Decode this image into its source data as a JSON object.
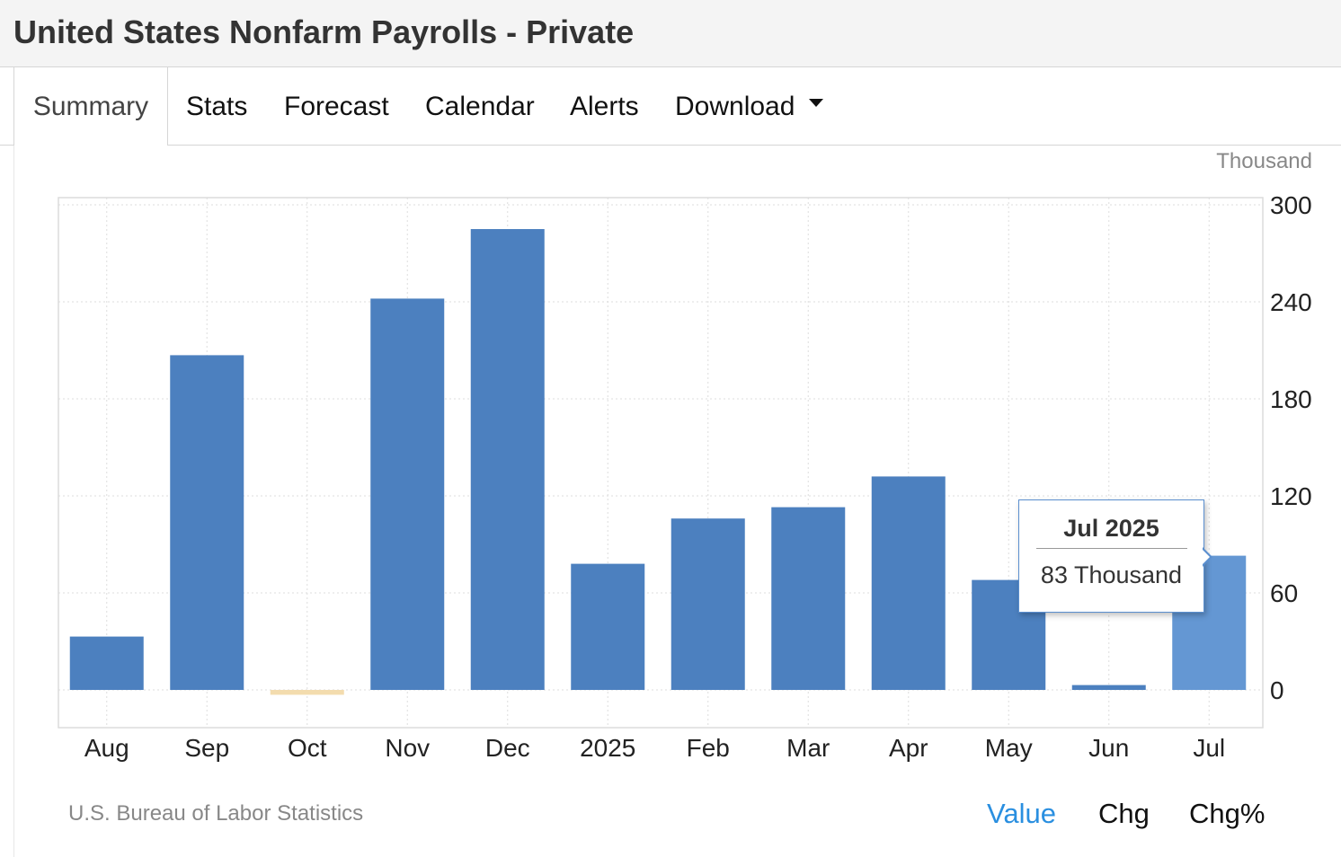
{
  "header": {
    "title": "United States Nonfarm Payrolls - Private"
  },
  "tabs": [
    {
      "label": "Summary",
      "active": true
    },
    {
      "label": "Stats"
    },
    {
      "label": "Forecast"
    },
    {
      "label": "Calendar"
    },
    {
      "label": "Alerts"
    },
    {
      "label": "Download",
      "icon": "caret-down-icon"
    }
  ],
  "chart_data": {
    "type": "bar",
    "unit": "Thousand",
    "categories": [
      "Aug",
      "Sep",
      "Oct",
      "Nov",
      "Dec",
      "2025",
      "Feb",
      "Mar",
      "Apr",
      "May",
      "Jun",
      "Jul"
    ],
    "values": [
      33,
      207,
      -3,
      242,
      285,
      78,
      106,
      113,
      132,
      68,
      3,
      83
    ],
    "ylim": [
      0,
      300
    ],
    "yticks": [
      300,
      240,
      180,
      120,
      60,
      0
    ],
    "y_axis_side": "right",
    "grid": true,
    "highlighted_index": 11,
    "colors": {
      "positive": "#4c80bf",
      "negative": "#f3dcae",
      "highlight": "#6497d3"
    },
    "tooltip": {
      "title": "Jul 2025",
      "value": "83 Thousand"
    }
  },
  "footer": {
    "source": "U.S. Bureau of Labor Statistics",
    "modes": [
      {
        "label": "Value",
        "active": true
      },
      {
        "label": "Chg"
      },
      {
        "label": "Chg%"
      }
    ]
  }
}
